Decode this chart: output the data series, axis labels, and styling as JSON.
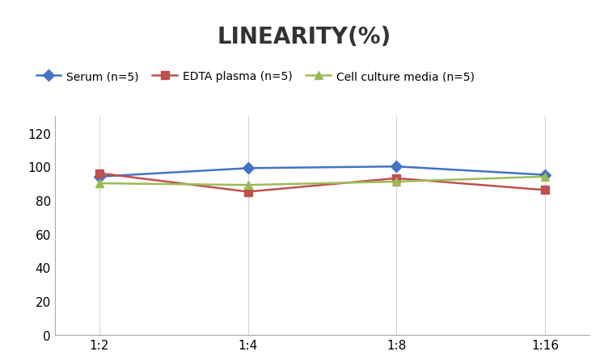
{
  "title": "LINEARITY(%)",
  "x_labels": [
    "1:2",
    "1:4",
    "1:8",
    "1:16"
  ],
  "x_positions": [
    0,
    1,
    2,
    3
  ],
  "serum": [
    94,
    99,
    100,
    95
  ],
  "edta": [
    96,
    85,
    93,
    86
  ],
  "cell": [
    90,
    89,
    91,
    94
  ],
  "serum_color": "#4472C4",
  "edta_color": "#C0504D",
  "cell_color": "#9BBB59",
  "ylim_min": 0,
  "ylim_max": 130,
  "yticks": [
    0,
    20,
    40,
    60,
    80,
    100,
    120
  ],
  "legend_serum": "Serum (n=5)",
  "legend_edta": "EDTA plasma (n=5)",
  "legend_cell": "Cell culture media (n=5)",
  "title_fontsize": 20,
  "title_fontweight": "bold",
  "legend_fontsize": 10,
  "tick_fontsize": 11,
  "background_color": "#ffffff",
  "grid_color": "#d3d3d3",
  "linewidth": 1.8,
  "marker_size": 7
}
